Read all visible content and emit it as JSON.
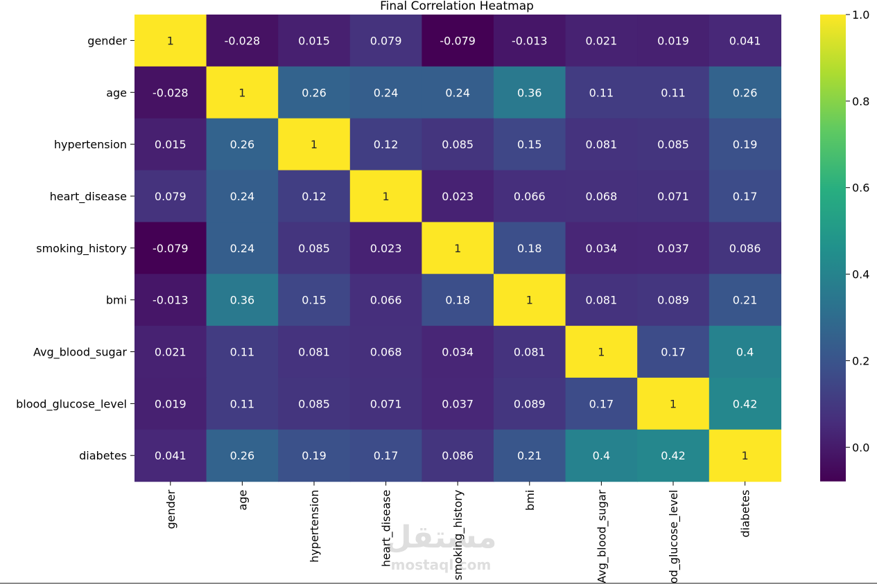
{
  "chart_data": {
    "type": "heatmap",
    "title": "Final Correlation Heatmap",
    "x_labels": [
      "gender",
      "age",
      "hypertension",
      "heart_disease",
      "smoking_history",
      "bmi",
      "Avg_blood_sugar",
      "blood_glucose_level",
      "diabetes"
    ],
    "y_labels": [
      "gender",
      "age",
      "hypertension",
      "heart_disease",
      "smoking_history",
      "bmi",
      "Avg_blood_sugar",
      "blood_glucose_level",
      "diabetes"
    ],
    "values": [
      [
        1,
        -0.028,
        0.015,
        0.079,
        -0.079,
        -0.013,
        0.021,
        0.019,
        0.041
      ],
      [
        -0.028,
        1,
        0.26,
        0.24,
        0.24,
        0.36,
        0.11,
        0.11,
        0.26
      ],
      [
        0.015,
        0.26,
        1,
        0.12,
        0.085,
        0.15,
        0.081,
        0.085,
        0.19
      ],
      [
        0.079,
        0.24,
        0.12,
        1,
        0.023,
        0.066,
        0.068,
        0.071,
        0.17
      ],
      [
        -0.079,
        0.24,
        0.085,
        0.023,
        1,
        0.18,
        0.034,
        0.037,
        0.086
      ],
      [
        -0.013,
        0.36,
        0.15,
        0.066,
        0.18,
        1,
        0.081,
        0.089,
        0.21
      ],
      [
        0.021,
        0.11,
        0.081,
        0.068,
        0.034,
        0.081,
        1,
        0.17,
        0.4
      ],
      [
        0.019,
        0.11,
        0.085,
        0.071,
        0.037,
        0.089,
        0.17,
        1,
        0.42
      ],
      [
        0.041,
        0.26,
        0.19,
        0.17,
        0.086,
        0.21,
        0.4,
        0.42,
        1
      ]
    ],
    "annotations": [
      [
        "1",
        "-0.028",
        "0.015",
        "0.079",
        "-0.079",
        "-0.013",
        "0.021",
        "0.019",
        "0.041"
      ],
      [
        "-0.028",
        "1",
        "0.26",
        "0.24",
        "0.24",
        "0.36",
        "0.11",
        "0.11",
        "0.26"
      ],
      [
        "0.015",
        "0.26",
        "1",
        "0.12",
        "0.085",
        "0.15",
        "0.081",
        "0.085",
        "0.19"
      ],
      [
        "0.079",
        "0.24",
        "0.12",
        "1",
        "0.023",
        "0.066",
        "0.068",
        "0.071",
        "0.17"
      ],
      [
        "-0.079",
        "0.24",
        "0.085",
        "0.023",
        "1",
        "0.18",
        "0.034",
        "0.037",
        "0.086"
      ],
      [
        "-0.013",
        "0.36",
        "0.15",
        "0.066",
        "0.18",
        "1",
        "0.081",
        "0.089",
        "0.21"
      ],
      [
        "0.021",
        "0.11",
        "0.081",
        "0.068",
        "0.034",
        "0.081",
        "1",
        "0.17",
        "0.4"
      ],
      [
        "0.019",
        "0.11",
        "0.085",
        "0.071",
        "0.037",
        "0.089",
        "0.17",
        "1",
        "0.42"
      ],
      [
        "0.041",
        "0.26",
        "0.19",
        "0.17",
        "0.086",
        "0.21",
        "0.4",
        "0.42",
        "1"
      ]
    ],
    "colormap": "viridis",
    "vmin": -0.079,
    "vmax": 1.0,
    "colorbar_ticks": [
      0.0,
      0.2,
      0.4,
      0.6,
      0.8,
      1.0
    ],
    "colorbar_tick_labels": [
      "0.0",
      "0.2",
      "0.4",
      "0.6",
      "0.8",
      "1.0"
    ],
    "grid": false
  },
  "watermark": {
    "arabic_text": "مستقل",
    "latin_text": "mostaql.com"
  }
}
